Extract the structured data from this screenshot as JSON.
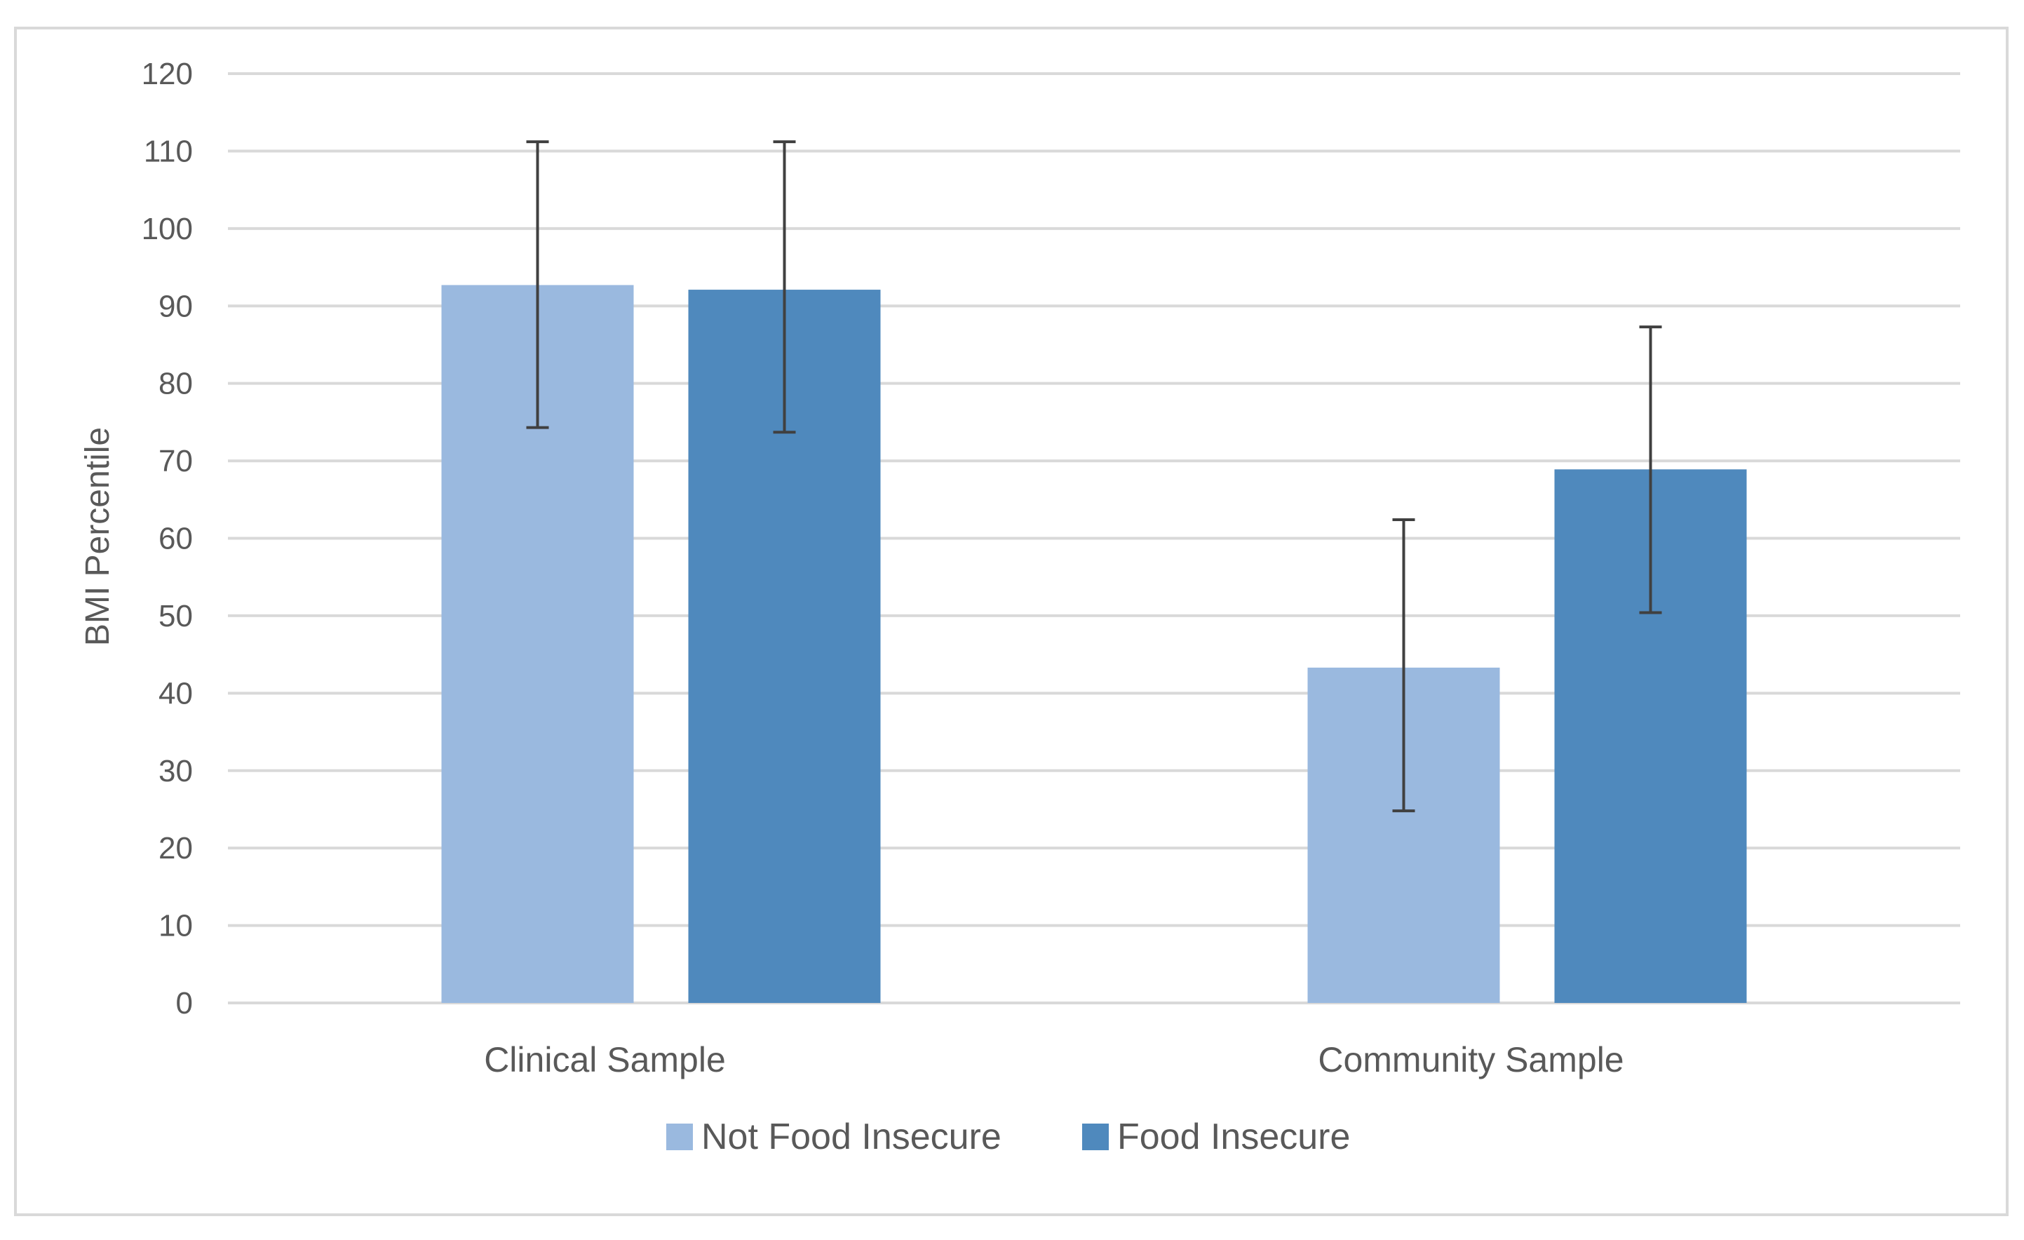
{
  "chart_data": {
    "type": "bar",
    "title": "",
    "xlabel": "",
    "ylabel": "BMI Percentile",
    "ylim": [
      0,
      120
    ],
    "yticks": [
      0,
      10,
      20,
      30,
      40,
      50,
      60,
      70,
      80,
      90,
      100,
      110,
      120
    ],
    "grid": true,
    "legend_position": "bottom",
    "categories": [
      "Clinical Sample",
      "Community Sample"
    ],
    "series": [
      {
        "name": "Not Food Insecure",
        "color": "#9ab9df",
        "values": [
          92.7,
          43.3
        ],
        "error_low": [
          74.3,
          24.8
        ],
        "error_high": [
          111.2,
          62.4
        ]
      },
      {
        "name": "Food Insecure",
        "color": "#4f89bd",
        "values": [
          92.1,
          68.9
        ],
        "error_low": [
          73.7,
          50.4
        ],
        "error_high": [
          111.2,
          87.3
        ]
      }
    ]
  }
}
